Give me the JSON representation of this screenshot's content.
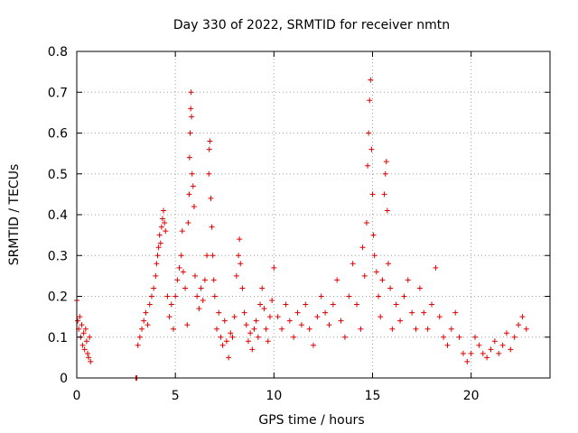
{
  "chart_data": {
    "type": "scatter",
    "title": "Day 330 of 2022, SRMTID for receiver nmtn",
    "xlabel": "GPS time / hours",
    "ylabel": "SRMTID / TECUs",
    "xlim": [
      0,
      24
    ],
    "ylim": [
      0,
      0.8
    ],
    "xticks": [
      0,
      5,
      10,
      15,
      20
    ],
    "xtick_labels": [
      "0",
      "5",
      "10",
      "15",
      "20"
    ],
    "yticks": [
      0,
      0.1,
      0.2,
      0.3,
      0.4,
      0.5,
      0.6,
      0.7,
      0.8
    ],
    "ytick_labels": [
      "0",
      "0.1",
      "0.2",
      "0.3",
      "0.4",
      "0.5",
      "0.6",
      "0.7",
      "0.8"
    ],
    "grid": true,
    "marker": "+",
    "series": [
      {
        "name": "nmtn",
        "color": "#e00000",
        "points": [
          [
            0.0,
            0.19
          ],
          [
            0.05,
            0.14
          ],
          [
            0.1,
            0.12
          ],
          [
            0.15,
            0.15
          ],
          [
            0.2,
            0.1
          ],
          [
            0.25,
            0.13
          ],
          [
            0.3,
            0.08
          ],
          [
            0.35,
            0.11
          ],
          [
            0.4,
            0.07
          ],
          [
            0.45,
            0.12
          ],
          [
            0.5,
            0.09
          ],
          [
            0.55,
            0.06
          ],
          [
            0.6,
            0.05
          ],
          [
            0.65,
            0.1
          ],
          [
            0.7,
            0.04
          ],
          [
            3.0,
            0.0
          ],
          [
            3.05,
            0.0
          ],
          [
            3.1,
            0.08
          ],
          [
            3.2,
            0.1
          ],
          [
            3.3,
            0.12
          ],
          [
            3.4,
            0.14
          ],
          [
            3.5,
            0.16
          ],
          [
            3.6,
            0.13
          ],
          [
            3.7,
            0.18
          ],
          [
            3.8,
            0.2
          ],
          [
            3.9,
            0.22
          ],
          [
            4.0,
            0.25
          ],
          [
            4.05,
            0.28
          ],
          [
            4.1,
            0.3
          ],
          [
            4.15,
            0.32
          ],
          [
            4.2,
            0.35
          ],
          [
            4.25,
            0.33
          ],
          [
            4.3,
            0.37
          ],
          [
            4.35,
            0.39
          ],
          [
            4.4,
            0.41
          ],
          [
            4.45,
            0.38
          ],
          [
            4.5,
            0.36
          ],
          [
            4.6,
            0.2
          ],
          [
            4.7,
            0.15
          ],
          [
            4.8,
            0.18
          ],
          [
            4.9,
            0.12
          ],
          [
            5.0,
            0.2
          ],
          [
            5.1,
            0.24
          ],
          [
            5.2,
            0.27
          ],
          [
            5.3,
            0.3
          ],
          [
            5.35,
            0.36
          ],
          [
            5.4,
            0.26
          ],
          [
            5.5,
            0.22
          ],
          [
            5.6,
            0.13
          ],
          [
            5.65,
            0.38
          ],
          [
            5.7,
            0.45
          ],
          [
            5.72,
            0.54
          ],
          [
            5.75,
            0.6
          ],
          [
            5.78,
            0.66
          ],
          [
            5.8,
            0.7
          ],
          [
            5.82,
            0.64
          ],
          [
            5.85,
            0.5
          ],
          [
            5.9,
            0.47
          ],
          [
            5.95,
            0.42
          ],
          [
            6.0,
            0.25
          ],
          [
            6.1,
            0.2
          ],
          [
            6.2,
            0.17
          ],
          [
            6.3,
            0.22
          ],
          [
            6.4,
            0.19
          ],
          [
            6.5,
            0.24
          ],
          [
            6.6,
            0.3
          ],
          [
            6.7,
            0.5
          ],
          [
            6.72,
            0.56
          ],
          [
            6.75,
            0.58
          ],
          [
            6.8,
            0.44
          ],
          [
            6.85,
            0.37
          ],
          [
            6.9,
            0.3
          ],
          [
            6.95,
            0.24
          ],
          [
            7.0,
            0.2
          ],
          [
            7.1,
            0.12
          ],
          [
            7.2,
            0.16
          ],
          [
            7.3,
            0.1
          ],
          [
            7.4,
            0.08
          ],
          [
            7.5,
            0.14
          ],
          [
            7.6,
            0.09
          ],
          [
            7.7,
            0.05
          ],
          [
            7.8,
            0.11
          ],
          [
            7.9,
            0.1
          ],
          [
            8.0,
            0.15
          ],
          [
            8.1,
            0.25
          ],
          [
            8.2,
            0.3
          ],
          [
            8.25,
            0.34
          ],
          [
            8.3,
            0.28
          ],
          [
            8.4,
            0.22
          ],
          [
            8.5,
            0.16
          ],
          [
            8.6,
            0.13
          ],
          [
            8.7,
            0.09
          ],
          [
            8.8,
            0.11
          ],
          [
            8.9,
            0.07
          ],
          [
            9.0,
            0.12
          ],
          [
            9.1,
            0.14
          ],
          [
            9.2,
            0.1
          ],
          [
            9.3,
            0.18
          ],
          [
            9.4,
            0.22
          ],
          [
            9.5,
            0.17
          ],
          [
            9.6,
            0.12
          ],
          [
            9.7,
            0.09
          ],
          [
            9.8,
            0.15
          ],
          [
            9.9,
            0.19
          ],
          [
            10.0,
            0.27
          ],
          [
            10.2,
            0.15
          ],
          [
            10.4,
            0.12
          ],
          [
            10.6,
            0.18
          ],
          [
            10.8,
            0.14
          ],
          [
            11.0,
            0.1
          ],
          [
            11.2,
            0.16
          ],
          [
            11.4,
            0.13
          ],
          [
            11.6,
            0.18
          ],
          [
            11.8,
            0.12
          ],
          [
            12.0,
            0.08
          ],
          [
            12.2,
            0.15
          ],
          [
            12.4,
            0.2
          ],
          [
            12.6,
            0.16
          ],
          [
            12.8,
            0.13
          ],
          [
            13.0,
            0.18
          ],
          [
            13.2,
            0.24
          ],
          [
            13.4,
            0.14
          ],
          [
            13.6,
            0.1
          ],
          [
            13.8,
            0.2
          ],
          [
            14.0,
            0.28
          ],
          [
            14.2,
            0.18
          ],
          [
            14.4,
            0.12
          ],
          [
            14.5,
            0.32
          ],
          [
            14.6,
            0.25
          ],
          [
            14.7,
            0.38
          ],
          [
            14.75,
            0.52
          ],
          [
            14.8,
            0.6
          ],
          [
            14.85,
            0.68
          ],
          [
            14.9,
            0.73
          ],
          [
            14.95,
            0.56
          ],
          [
            15.0,
            0.45
          ],
          [
            15.05,
            0.35
          ],
          [
            15.1,
            0.3
          ],
          [
            15.2,
            0.26
          ],
          [
            15.3,
            0.2
          ],
          [
            15.4,
            0.15
          ],
          [
            15.5,
            0.24
          ],
          [
            15.6,
            0.45
          ],
          [
            15.65,
            0.5
          ],
          [
            15.7,
            0.53
          ],
          [
            15.75,
            0.41
          ],
          [
            15.8,
            0.28
          ],
          [
            15.9,
            0.22
          ],
          [
            16.0,
            0.12
          ],
          [
            16.2,
            0.18
          ],
          [
            16.4,
            0.14
          ],
          [
            16.6,
            0.2
          ],
          [
            16.8,
            0.24
          ],
          [
            17.0,
            0.16
          ],
          [
            17.2,
            0.12
          ],
          [
            17.4,
            0.22
          ],
          [
            17.6,
            0.16
          ],
          [
            17.8,
            0.12
          ],
          [
            18.0,
            0.18
          ],
          [
            18.2,
            0.27
          ],
          [
            18.4,
            0.15
          ],
          [
            18.6,
            0.1
          ],
          [
            18.8,
            0.08
          ],
          [
            19.0,
            0.12
          ],
          [
            19.2,
            0.16
          ],
          [
            19.4,
            0.1
          ],
          [
            19.6,
            0.06
          ],
          [
            19.8,
            0.04
          ],
          [
            20.0,
            0.06
          ],
          [
            20.2,
            0.1
          ],
          [
            20.4,
            0.08
          ],
          [
            20.6,
            0.06
          ],
          [
            20.8,
            0.05
          ],
          [
            21.0,
            0.07
          ],
          [
            21.2,
            0.09
          ],
          [
            21.4,
            0.06
          ],
          [
            21.6,
            0.08
          ],
          [
            21.8,
            0.11
          ],
          [
            22.0,
            0.07
          ],
          [
            22.2,
            0.1
          ],
          [
            22.4,
            0.13
          ],
          [
            22.6,
            0.15
          ],
          [
            22.8,
            0.12
          ]
        ]
      }
    ]
  }
}
